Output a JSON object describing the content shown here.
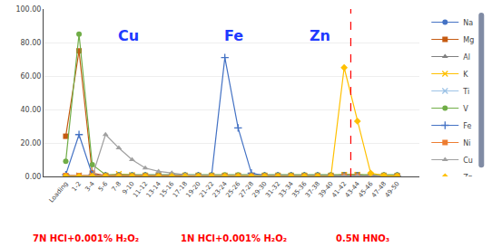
{
  "chart_data": {
    "type": "line",
    "categories": [
      "Loading",
      "1-2",
      "3-4",
      "5-6",
      "7-8",
      "9-10",
      "11-12",
      "13-14",
      "15-16",
      "17-18",
      "19-20",
      "21-22",
      "23-24",
      "25-26",
      "27-28",
      "29-30",
      "31-32",
      "33-34",
      "35-36",
      "37-38",
      "39-40",
      "41-42",
      "43-44",
      "45-46",
      "47-48",
      "49-50"
    ],
    "series": [
      {
        "name": "Na",
        "color": "#4472c4",
        "marker": "circle",
        "values": [
          0.5,
          0.5,
          0.3,
          0.2,
          0.2,
          0.2,
          0.2,
          0.2,
          0.2,
          0.2,
          0.2,
          0.2,
          0.2,
          0.2,
          0.2,
          0.2,
          0.2,
          0.2,
          0.2,
          0.2,
          0.2,
          0.3,
          0.3,
          0.2,
          0.2,
          0.2
        ]
      },
      {
        "name": "Mg",
        "color": "#c55a11",
        "marker": "square",
        "values": [
          24,
          75,
          2,
          0.5,
          0.5,
          0.5,
          0.5,
          0.5,
          0.5,
          0.5,
          0.5,
          0.5,
          0.5,
          0.5,
          0.5,
          0.5,
          0.5,
          0.5,
          0.5,
          0.5,
          0.5,
          1.0,
          1.0,
          0.5,
          0.5,
          0.3
        ]
      },
      {
        "name": "Al",
        "color": "#808080",
        "marker": "triangle",
        "values": [
          0,
          0,
          0,
          0,
          0,
          0,
          0,
          0,
          0,
          0,
          0,
          0,
          0,
          0,
          0,
          0,
          0,
          0,
          0,
          0,
          0,
          0,
          0,
          0,
          0,
          0
        ]
      },
      {
        "name": "K",
        "color": "#ffc000",
        "marker": "x",
        "values": [
          0.3,
          0.5,
          0.3,
          0.5,
          1.5,
          0.8,
          0.5,
          0.5,
          0.5,
          0.5,
          0.5,
          0.5,
          0.5,
          0.5,
          0.5,
          0.5,
          0.5,
          0.5,
          0.5,
          0.5,
          0.5,
          1.0,
          1.0,
          0.5,
          0.5,
          0.3
        ]
      },
      {
        "name": "Ti",
        "color": "#9dc3e6",
        "marker": "x",
        "values": [
          0.3,
          0.5,
          0.3,
          0.2,
          0.2,
          0.2,
          0.2,
          0.2,
          0.2,
          0.2,
          0.2,
          0.2,
          0.2,
          0.2,
          0.2,
          0.2,
          0.2,
          0.2,
          0.2,
          0.2,
          0.2,
          0.3,
          0.3,
          0.2,
          0.2,
          0.2
        ]
      },
      {
        "name": "V",
        "color": "#70ad47",
        "marker": "circle",
        "values": [
          9,
          85,
          7,
          1,
          1,
          1,
          1,
          1,
          1,
          1,
          1,
          1,
          1,
          1,
          1,
          1,
          1,
          1,
          1,
          1,
          1,
          1,
          1,
          1,
          1,
          1
        ]
      },
      {
        "name": "Fe",
        "color": "#4472c4",
        "marker": "plus",
        "values": [
          1,
          25,
          1,
          0.5,
          0.5,
          0.5,
          0.5,
          0.5,
          0.5,
          0.5,
          0.5,
          0.5,
          71,
          29,
          2,
          0.5,
          0.5,
          0.5,
          0.5,
          0.5,
          0.5,
          0.5,
          0.5,
          0.5,
          0.5,
          0.3
        ]
      },
      {
        "name": "Ni",
        "color": "#ed7d31",
        "marker": "square",
        "values": [
          0.5,
          0.5,
          0.3,
          0.2,
          0.2,
          0.2,
          0.2,
          0.2,
          0.2,
          0.2,
          0.2,
          0.2,
          0.2,
          0.2,
          0.2,
          0.2,
          0.2,
          0.2,
          0.2,
          0.2,
          0.2,
          0.3,
          0.3,
          0.2,
          0.2,
          0.2
        ]
      },
      {
        "name": "Cu",
        "color": "#a0a0a0",
        "marker": "triangle",
        "values": [
          0,
          0,
          0,
          25,
          17,
          10,
          5,
          3,
          2,
          1,
          0.5,
          0.5,
          0.3,
          0.3,
          0.2,
          0.2,
          0.2,
          0.2,
          0.2,
          0.2,
          0.2,
          0.2,
          0.3,
          0.2,
          0.2,
          0.1
        ]
      },
      {
        "name": "Zn",
        "color": "#ffc000",
        "marker": "diamond",
        "values": [
          0,
          0,
          0,
          0,
          0,
          0,
          0,
          0,
          0,
          0,
          0,
          0,
          0,
          0,
          0,
          0,
          0,
          0,
          0,
          0,
          0,
          65,
          33,
          2,
          0.5,
          0.2
        ]
      }
    ],
    "ylim": [
      0,
      100
    ],
    "yticks": [
      {
        "value": 0,
        "label": "0.00"
      },
      {
        "value": 20,
        "label": "20.00"
      },
      {
        "value": 40,
        "label": "40.00"
      },
      {
        "value": 60,
        "label": "60.00"
      },
      {
        "value": 80,
        "label": "80.00"
      },
      {
        "value": 100,
        "label": "100.00"
      }
    ],
    "grid": true,
    "legend": "right",
    "vlines": [
      {
        "x": 21.5,
        "color": "red",
        "line_style": "dashed"
      }
    ],
    "annotations": [
      {
        "text": "Cu",
        "color": "#1f3aff"
      },
      {
        "text": "Fe",
        "color": "#1f3aff"
      },
      {
        "text": "Zn",
        "color": "#1f3aff"
      },
      {
        "text": "7N HCl+0.001% H₂O₂",
        "color": "red"
      },
      {
        "text": "1N HCl+0.001% H₂O₂",
        "color": "red"
      },
      {
        "text": "0.5N HNO₃",
        "color": "red"
      }
    ]
  }
}
